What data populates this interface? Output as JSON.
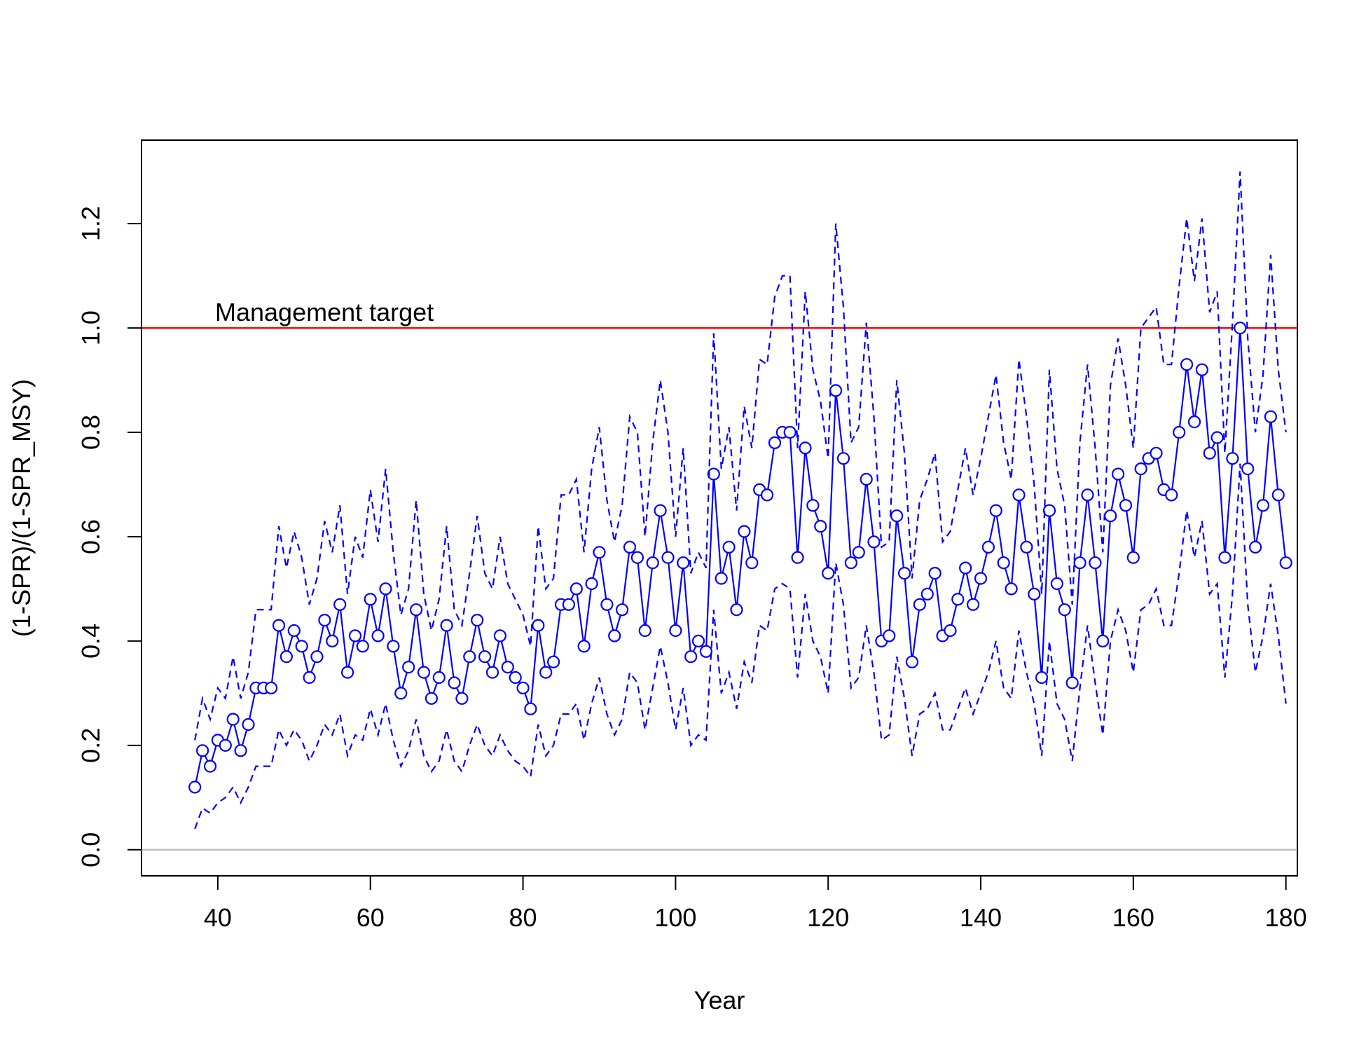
{
  "chart_data": {
    "type": "line",
    "title": "",
    "xlabel": "Year",
    "ylabel": "(1-SPR)/(1-SPR_MSY)",
    "xlim": [
      30,
      181.5
    ],
    "ylim": [
      -0.05,
      1.36
    ],
    "x_ticks": [
      40,
      60,
      80,
      100,
      120,
      140,
      160,
      180
    ],
    "x_tick_labels": [
      "40",
      "60",
      "80",
      "100",
      "120",
      "140",
      "160",
      "180"
    ],
    "y_ticks": [
      0.0,
      0.2,
      0.4,
      0.6,
      0.8,
      1.0,
      1.2
    ],
    "y_tick_labels": [
      "0.0",
      "0.2",
      "0.4",
      "0.6",
      "0.8",
      "1.0",
      "1.2"
    ],
    "grid": false,
    "x": [
      37,
      38,
      39,
      40,
      41,
      42,
      43,
      44,
      45,
      46,
      47,
      48,
      49,
      50,
      51,
      52,
      53,
      54,
      55,
      56,
      57,
      58,
      59,
      60,
      61,
      62,
      63,
      64,
      65,
      66,
      67,
      68,
      69,
      70,
      71,
      72,
      73,
      74,
      75,
      76,
      77,
      78,
      79,
      80,
      81,
      82,
      83,
      84,
      85,
      86,
      87,
      88,
      89,
      90,
      91,
      92,
      93,
      94,
      95,
      96,
      97,
      98,
      99,
      100,
      101,
      102,
      103,
      104,
      105,
      106,
      107,
      108,
      109,
      110,
      111,
      112,
      113,
      114,
      115,
      116,
      117,
      118,
      119,
      120,
      121,
      122,
      123,
      124,
      125,
      126,
      127,
      128,
      129,
      130,
      131,
      132,
      133,
      134,
      135,
      136,
      137,
      138,
      139,
      140,
      141,
      142,
      143,
      144,
      145,
      146,
      147,
      148,
      149,
      150,
      151,
      152,
      153,
      154,
      155,
      156,
      157,
      158,
      159,
      160,
      161,
      162,
      163,
      164,
      165,
      166,
      167,
      168,
      169,
      170,
      171,
      172,
      173,
      174,
      175,
      176,
      177,
      178,
      179,
      180
    ],
    "series": [
      {
        "role": "estimate",
        "color": "#0000ff",
        "style": "solid-with-circles",
        "values": [
          0.12,
          0.19,
          0.16,
          0.21,
          0.2,
          0.25,
          0.19,
          0.24,
          0.31,
          0.31,
          0.31,
          0.43,
          0.37,
          0.42,
          0.39,
          0.33,
          0.37,
          0.44,
          0.4,
          0.47,
          0.34,
          0.41,
          0.39,
          0.48,
          0.41,
          0.5,
          0.39,
          0.3,
          0.35,
          0.46,
          0.34,
          0.29,
          0.33,
          0.43,
          0.32,
          0.29,
          0.37,
          0.44,
          0.37,
          0.34,
          0.41,
          0.35,
          0.33,
          0.31,
          0.27,
          0.43,
          0.34,
          0.36,
          0.47,
          0.47,
          0.5,
          0.39,
          0.51,
          0.57,
          0.47,
          0.41,
          0.46,
          0.58,
          0.56,
          0.42,
          0.55,
          0.65,
          0.56,
          0.42,
          0.55,
          0.37,
          0.4,
          0.38,
          0.72,
          0.52,
          0.58,
          0.46,
          0.61,
          0.55,
          0.69,
          0.68,
          0.78,
          0.8,
          0.8,
          0.56,
          0.77,
          0.66,
          0.62,
          0.53,
          0.88,
          0.75,
          0.55,
          0.57,
          0.71,
          0.59,
          0.4,
          0.41,
          0.64,
          0.53,
          0.36,
          0.47,
          0.49,
          0.53,
          0.41,
          0.42,
          0.48,
          0.54,
          0.47,
          0.52,
          0.58,
          0.65,
          0.55,
          0.5,
          0.68,
          0.58,
          0.49,
          0.33,
          0.65,
          0.51,
          0.46,
          0.32,
          0.55,
          0.68,
          0.55,
          0.4,
          0.64,
          0.72,
          0.66,
          0.56,
          0.73,
          0.75,
          0.76,
          0.69,
          0.68,
          0.8,
          0.93,
          0.82,
          0.92,
          0.76,
          0.79,
          0.56,
          0.75,
          1.0,
          0.73,
          0.58,
          0.66,
          0.83,
          0.68,
          0.55
        ]
      },
      {
        "role": "upper-bound",
        "color": "#0000ff",
        "style": "dashed",
        "values": [
          0.21,
          0.29,
          0.25,
          0.31,
          0.29,
          0.37,
          0.29,
          0.34,
          0.46,
          0.46,
          0.46,
          0.62,
          0.54,
          0.61,
          0.56,
          0.47,
          0.52,
          0.63,
          0.57,
          0.66,
          0.49,
          0.6,
          0.56,
          0.69,
          0.59,
          0.73,
          0.57,
          0.45,
          0.5,
          0.67,
          0.49,
          0.42,
          0.48,
          0.62,
          0.46,
          0.43,
          0.53,
          0.64,
          0.53,
          0.5,
          0.6,
          0.51,
          0.48,
          0.45,
          0.39,
          0.62,
          0.5,
          0.52,
          0.68,
          0.68,
          0.71,
          0.57,
          0.73,
          0.81,
          0.67,
          0.59,
          0.66,
          0.83,
          0.8,
          0.6,
          0.78,
          0.9,
          0.8,
          0.6,
          0.77,
          0.53,
          0.57,
          0.54,
          0.99,
          0.73,
          0.81,
          0.65,
          0.85,
          0.77,
          0.94,
          0.93,
          1.06,
          1.1,
          1.1,
          0.77,
          1.07,
          0.92,
          0.86,
          0.75,
          1.2,
          1.04,
          0.78,
          0.81,
          1.01,
          0.83,
          0.58,
          0.59,
          0.9,
          0.76,
          0.52,
          0.67,
          0.71,
          0.76,
          0.59,
          0.61,
          0.69,
          0.77,
          0.68,
          0.75,
          0.83,
          0.91,
          0.78,
          0.71,
          0.94,
          0.83,
          0.7,
          0.49,
          0.92,
          0.73,
          0.66,
          0.47,
          0.78,
          0.93,
          0.77,
          0.57,
          0.89,
          0.98,
          0.89,
          0.77,
          1.0,
          1.02,
          1.04,
          0.93,
          0.93,
          1.08,
          1.21,
          1.09,
          1.21,
          1.03,
          1.07,
          0.76,
          1.01,
          1.3,
          0.98,
          0.8,
          0.91,
          1.14,
          0.92,
          0.8
        ]
      },
      {
        "role": "lower-bound",
        "color": "#0000ff",
        "style": "dashed",
        "values": [
          0.04,
          0.08,
          0.07,
          0.09,
          0.1,
          0.12,
          0.09,
          0.12,
          0.16,
          0.16,
          0.16,
          0.23,
          0.2,
          0.23,
          0.21,
          0.17,
          0.2,
          0.24,
          0.22,
          0.26,
          0.18,
          0.22,
          0.21,
          0.27,
          0.22,
          0.28,
          0.21,
          0.16,
          0.19,
          0.25,
          0.18,
          0.15,
          0.17,
          0.23,
          0.17,
          0.15,
          0.2,
          0.24,
          0.2,
          0.18,
          0.22,
          0.19,
          0.17,
          0.16,
          0.14,
          0.24,
          0.18,
          0.2,
          0.26,
          0.26,
          0.28,
          0.21,
          0.28,
          0.33,
          0.26,
          0.22,
          0.25,
          0.34,
          0.32,
          0.23,
          0.31,
          0.39,
          0.32,
          0.23,
          0.31,
          0.2,
          0.22,
          0.21,
          0.46,
          0.3,
          0.34,
          0.27,
          0.36,
          0.32,
          0.43,
          0.42,
          0.5,
          0.51,
          0.5,
          0.33,
          0.49,
          0.4,
          0.37,
          0.3,
          0.55,
          0.47,
          0.31,
          0.33,
          0.43,
          0.34,
          0.21,
          0.22,
          0.37,
          0.29,
          0.18,
          0.26,
          0.27,
          0.3,
          0.23,
          0.23,
          0.27,
          0.31,
          0.26,
          0.3,
          0.34,
          0.4,
          0.31,
          0.29,
          0.42,
          0.34,
          0.28,
          0.18,
          0.4,
          0.28,
          0.25,
          0.17,
          0.31,
          0.43,
          0.32,
          0.22,
          0.4,
          0.46,
          0.42,
          0.34,
          0.46,
          0.47,
          0.5,
          0.43,
          0.43,
          0.53,
          0.65,
          0.56,
          0.63,
          0.49,
          0.51,
          0.33,
          0.49,
          0.74,
          0.47,
          0.34,
          0.41,
          0.51,
          0.41,
          0.28
        ]
      }
    ],
    "reference_lines": [
      {
        "y": 1.0,
        "color": "#ff0000",
        "label": "Management target"
      },
      {
        "y": 0.0,
        "color": "#bebebe",
        "label": ""
      }
    ]
  }
}
